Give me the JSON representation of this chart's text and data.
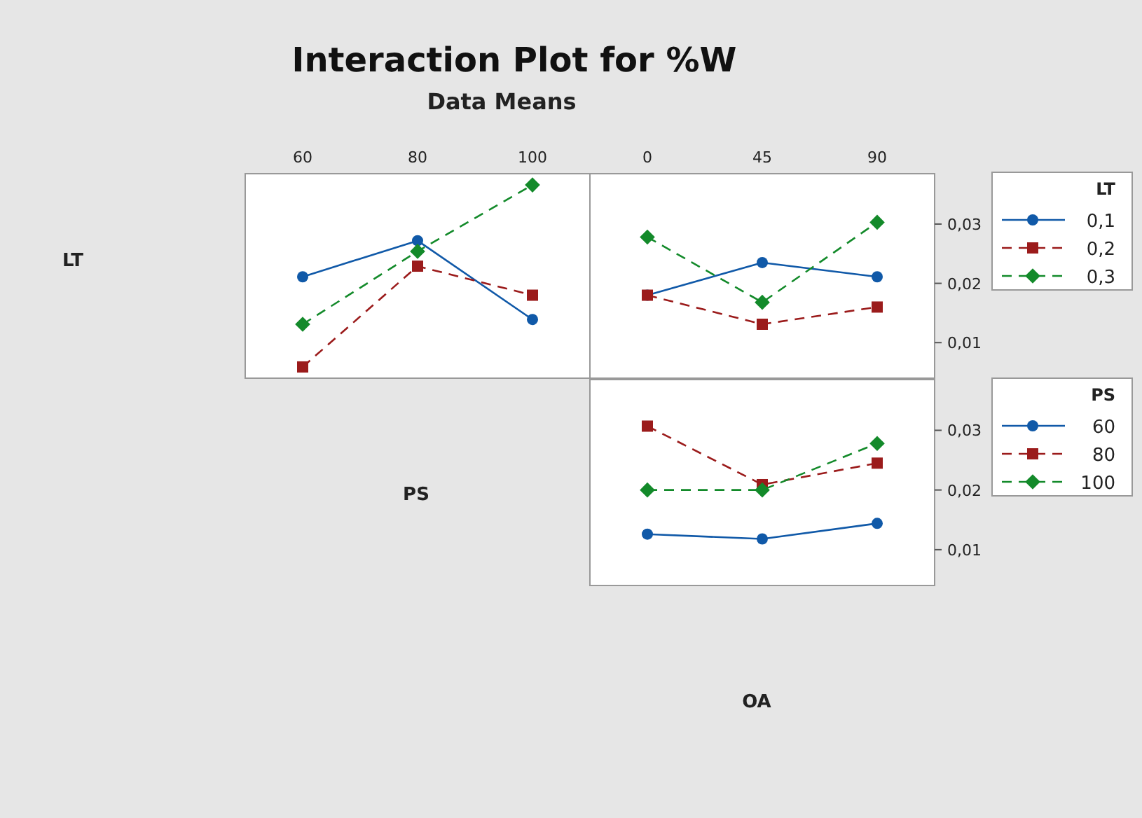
{
  "chart_data": [
    {
      "type": "other",
      "title": "Interaction Plot for %W",
      "subtitle": "Data Means",
      "annotations": [
        "LT",
        "PS",
        "OA"
      ]
    },
    {
      "type": "line",
      "categories": [
        "60",
        "80",
        "100"
      ],
      "ylim": [
        0.004,
        0.0385
      ],
      "tick_labels": "x",
      "legend": false,
      "series": [
        {
          "color": "#1059a8",
          "marker": "circle",
          "line_style": "solid",
          "values": [
            0.0211,
            0.0272,
            0.0139
          ]
        },
        {
          "color": "#9b1b1b",
          "marker": "square",
          "line_style": "dashed",
          "values": [
            0.0059,
            0.0229,
            0.018
          ]
        },
        {
          "color": "#138a2a",
          "marker": "diamond",
          "line_style": "dashed",
          "values": [
            0.0131,
            0.0254,
            0.0366
          ]
        }
      ]
    },
    {
      "type": "line",
      "categories": [
        "0",
        "45",
        "90"
      ],
      "ylim": [
        0.004,
        0.0385
      ],
      "yticks": [
        {
          "value": 0.01,
          "label": "0,01"
        },
        {
          "value": 0.02,
          "label": "0,02"
        },
        {
          "value": 0.03,
          "label": "0,03"
        }
      ],
      "legend": "right",
      "legend_title": "LT",
      "series": [
        {
          "name": "0,1",
          "color": "#1059a8",
          "marker": "circle",
          "line_style": "solid",
          "values": [
            0.018,
            0.0235,
            0.0211
          ]
        },
        {
          "name": "0,2",
          "color": "#9b1b1b",
          "marker": "square",
          "line_style": "dashed",
          "values": [
            0.018,
            0.0131,
            0.016
          ]
        },
        {
          "name": "0,3",
          "color": "#138a2a",
          "marker": "diamond",
          "line_style": "dashed",
          "values": [
            0.0278,
            0.0168,
            0.0303
          ]
        }
      ]
    },
    {
      "type": "line",
      "categories": [
        null,
        null,
        null
      ],
      "ylim": [
        0.004,
        0.0385
      ],
      "yticks": [
        {
          "value": 0.01,
          "label": "0,01"
        },
        {
          "value": 0.02,
          "label": "0,02"
        },
        {
          "value": 0.03,
          "label": "0,03"
        }
      ],
      "tick_labels": "y",
      "legend": "right",
      "legend_title": "PS",
      "series": [
        {
          "name": "60",
          "color": "#1059a8",
          "marker": "circle",
          "line_style": "solid",
          "values": [
            0.0126,
            0.0118,
            0.0144
          ]
        },
        {
          "name": "80",
          "color": "#9b1b1b",
          "marker": "square",
          "line_style": "dashed",
          "values": [
            0.0307,
            0.0209,
            0.0245
          ]
        },
        {
          "name": "100",
          "color": "#138a2a",
          "marker": "diamond",
          "line_style": "dashed",
          "values": [
            0.02,
            0.02,
            0.0278
          ]
        }
      ]
    }
  ]
}
